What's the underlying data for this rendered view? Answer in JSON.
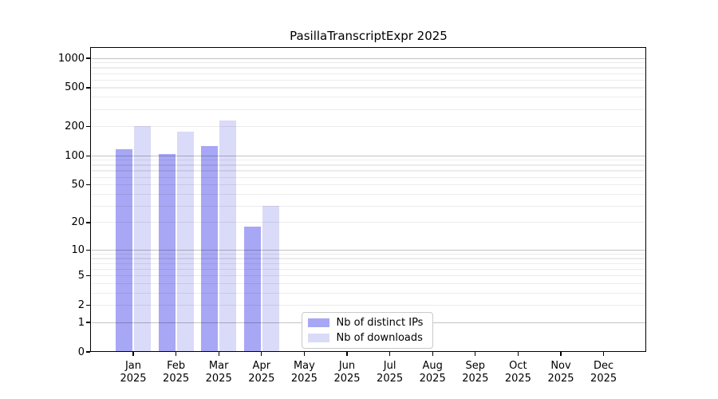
{
  "chart_data": {
    "type": "bar",
    "title": "PasillaTranscriptExpr 2025",
    "categories": [
      "Jan 2025",
      "Feb 2025",
      "Mar 2025",
      "Apr 2025",
      "May 2025",
      "Jun 2025",
      "Jul 2025",
      "Aug 2025",
      "Sep 2025",
      "Oct 2025",
      "Nov 2025",
      "Dec 2025"
    ],
    "series": [
      {
        "name": "Nb of distinct IPs",
        "color": "#a7a7f5",
        "values": [
          117,
          105,
          126,
          18,
          0,
          0,
          0,
          0,
          0,
          0,
          0,
          0
        ]
      },
      {
        "name": "Nb of downloads",
        "color": "#dadaf9",
        "values": [
          201,
          178,
          232,
          30,
          0,
          0,
          0,
          0,
          0,
          0,
          0,
          0
        ]
      }
    ],
    "yscale": "log1p",
    "ylim": [
      0,
      1280
    ],
    "ytick_values": [
      0,
      1,
      2,
      5,
      10,
      20,
      50,
      100,
      200,
      500,
      1000
    ],
    "ytick_labels": [
      "0",
      "1",
      "2",
      "5",
      "10",
      "20",
      "50",
      "100",
      "200",
      "500",
      "1000"
    ],
    "grid": "on",
    "legend_position": "lower center"
  },
  "colors": {
    "bar_distinct_ips": "#a7a7f5",
    "bar_downloads": "#dadaf9",
    "axis": "#000000",
    "background": "#ffffff"
  }
}
